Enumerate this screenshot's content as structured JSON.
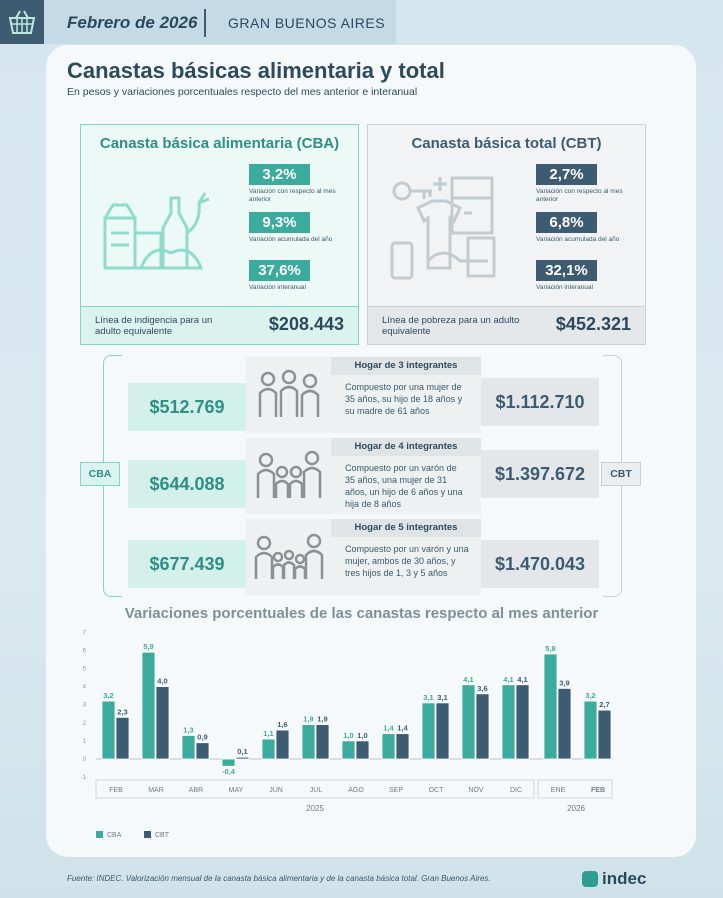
{
  "header": {
    "date": "Febrero de 2026",
    "region": "GRAN BUENOS AIRES"
  },
  "title": "Canastas básicas alimentaria y total",
  "subtitle": "En pesos y variaciones porcentuales respecto del mes anterior e interanual",
  "cba": {
    "title": "Canasta básica alimentaria (CBA)",
    "stats": [
      {
        "value": "3,2%",
        "label": "Variación con respecto al mes anterior"
      },
      {
        "value": "9,3%",
        "label": "Variación acumulada del año"
      },
      {
        "value": "37,6%",
        "label": "Variación interanual"
      }
    ],
    "line_label": "Línea de indigencia para un adulto equivalente",
    "line_value": "$208.443"
  },
  "cbt": {
    "title": "Canasta básica total (CBT)",
    "stats": [
      {
        "value": "2,7%",
        "label": "Variación con respecto al mes anterior"
      },
      {
        "value": "6,8%",
        "label": "Variación acumulada del año"
      },
      {
        "value": "32,1%",
        "label": "Variación interanual"
      }
    ],
    "line_label": "Línea de pobreza para un adulto equivalente",
    "line_value": "$452.321"
  },
  "tags": {
    "cba": "CBA",
    "cbt": "CBT"
  },
  "households": [
    {
      "title": "Hogar de 3 integrantes",
      "description": "Compuesto por una mujer de 35 años, su hijo de 18 años y su madre de 61 años",
      "cba": "$512.769",
      "cbt": "$1.112.710"
    },
    {
      "title": "Hogar de 4 integrantes",
      "description": "Compuesto por un varón de 35 años, una mujer de 31 años, un hijo de 6 años y una hija de 8 años",
      "cba": "$644.088",
      "cbt": "$1.397.672"
    },
    {
      "title": "Hogar de 5 integrantes",
      "description": "Compuesto por un varón y una mujer, ambos de 30 años, y tres hijos de 1, 3 y 5 años",
      "cba": "$677.439",
      "cbt": "$1.470.043"
    }
  ],
  "chart_data": {
    "type": "bar",
    "title": "Variaciones porcentuales de las canastas respecto al mes anterior",
    "categories": [
      "FEB",
      "MAR",
      "ABR",
      "MAY",
      "JUN",
      "JUL",
      "AGO",
      "SEP",
      "OCT",
      "NOV",
      "DIC",
      "ENE",
      "FEB"
    ],
    "year_labels": [
      "2025",
      "2026"
    ],
    "series": [
      {
        "name": "CBA",
        "color": "#3aab9c",
        "values": [
          3.2,
          5.9,
          1.3,
          -0.4,
          1.1,
          1.9,
          1.0,
          1.4,
          3.1,
          4.1,
          4.1,
          5.8,
          3.2
        ],
        "labels": [
          "3,2",
          "5,9",
          "1,3",
          "-0,4",
          "1,1",
          "1,9",
          "1,0",
          "1,4",
          "3,1",
          "4,1",
          "4,1",
          "5,8",
          "3,2"
        ]
      },
      {
        "name": "CBT",
        "color": "#3d5c71",
        "values": [
          2.3,
          4.0,
          0.9,
          0.1,
          1.6,
          1.9,
          1.0,
          1.4,
          3.1,
          3.6,
          4.1,
          3.9,
          2.7
        ],
        "labels": [
          "2,3",
          "4,0",
          "0,9",
          "0,1",
          "1,6",
          "1,9",
          "1,0",
          "1,4",
          "3,1",
          "3,6",
          "4,1",
          "3,9",
          "2,7"
        ]
      }
    ],
    "ylim": [
      -1,
      7
    ],
    "yticks": [
      "-1",
      "0",
      "1",
      "2",
      "3",
      "4",
      "5",
      "6",
      "7"
    ],
    "grid": false,
    "legend": "bottom-left"
  },
  "footer": {
    "source": "Fuente: INDEC. Valorización mensual de la canasta básica alimentaria y de la canasta básica total. Gran Buenos Aires.",
    "logo": "indec"
  }
}
